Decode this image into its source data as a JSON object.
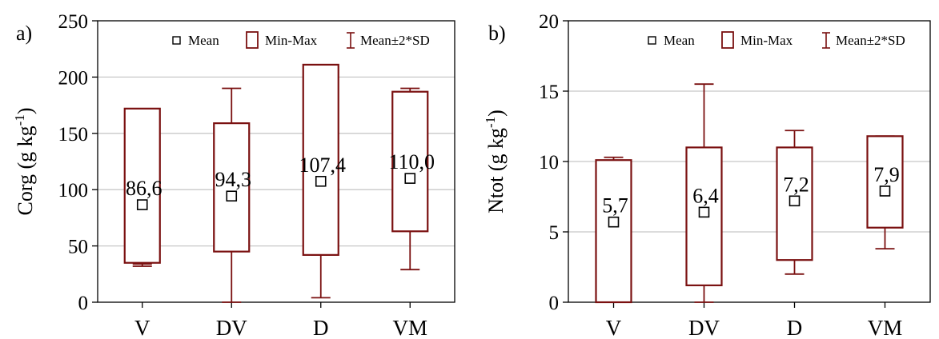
{
  "chart_data": [
    {
      "type": "box",
      "panel_label": "a)",
      "ylabel_main": "Corg (g kg",
      "ylabel_sup": "-1",
      "ylabel_close": ")",
      "ylim": [
        0,
        250
      ],
      "yticks": [
        0,
        50,
        100,
        150,
        200,
        250
      ],
      "grid": true,
      "legend_position": "top-right",
      "legend": {
        "mean": "Mean",
        "minmax": "Min-Max",
        "sd": "Mean±2*SD"
      },
      "colors": {
        "box": "#7a1010",
        "grid": "#c8c8c8"
      },
      "categories": [
        "V",
        "DV",
        "D",
        "VM"
      ],
      "mean": [
        86.6,
        94.3,
        107.4,
        110.0
      ],
      "mean_labels": [
        "86,6",
        "94,3",
        "107,4",
        "110,0"
      ],
      "min": [
        35,
        45,
        42,
        63
      ],
      "max": [
        172,
        159,
        211,
        187
      ],
      "sd_low": [
        32,
        0,
        4,
        29
      ],
      "sd_high": [
        34,
        190,
        42,
        190
      ]
    },
    {
      "type": "box",
      "panel_label": "b)",
      "ylabel_main": "Ntot (g kg",
      "ylabel_sup": "-1",
      "ylabel_close": ")",
      "ylim": [
        0,
        20
      ],
      "yticks": [
        0,
        5,
        10,
        15,
        20
      ],
      "grid": true,
      "legend_position": "top-right",
      "legend": {
        "mean": "Mean",
        "minmax": "Min-Max",
        "sd": "Mean±2*SD"
      },
      "colors": {
        "box": "#7a1010",
        "grid": "#c8c8c8"
      },
      "categories": [
        "V",
        "DV",
        "D",
        "VM"
      ],
      "mean": [
        5.7,
        6.4,
        7.2,
        7.9
      ],
      "mean_labels": [
        "5,7",
        "6,4",
        "7,2",
        "7,9"
      ],
      "min": [
        0,
        1.2,
        3.0,
        5.3
      ],
      "max": [
        10.1,
        11.0,
        11.0,
        11.8
      ],
      "sd_low": [
        0,
        0,
        2.0,
        3.8
      ],
      "sd_high": [
        10.3,
        15.5,
        12.2,
        11.8
      ]
    }
  ]
}
